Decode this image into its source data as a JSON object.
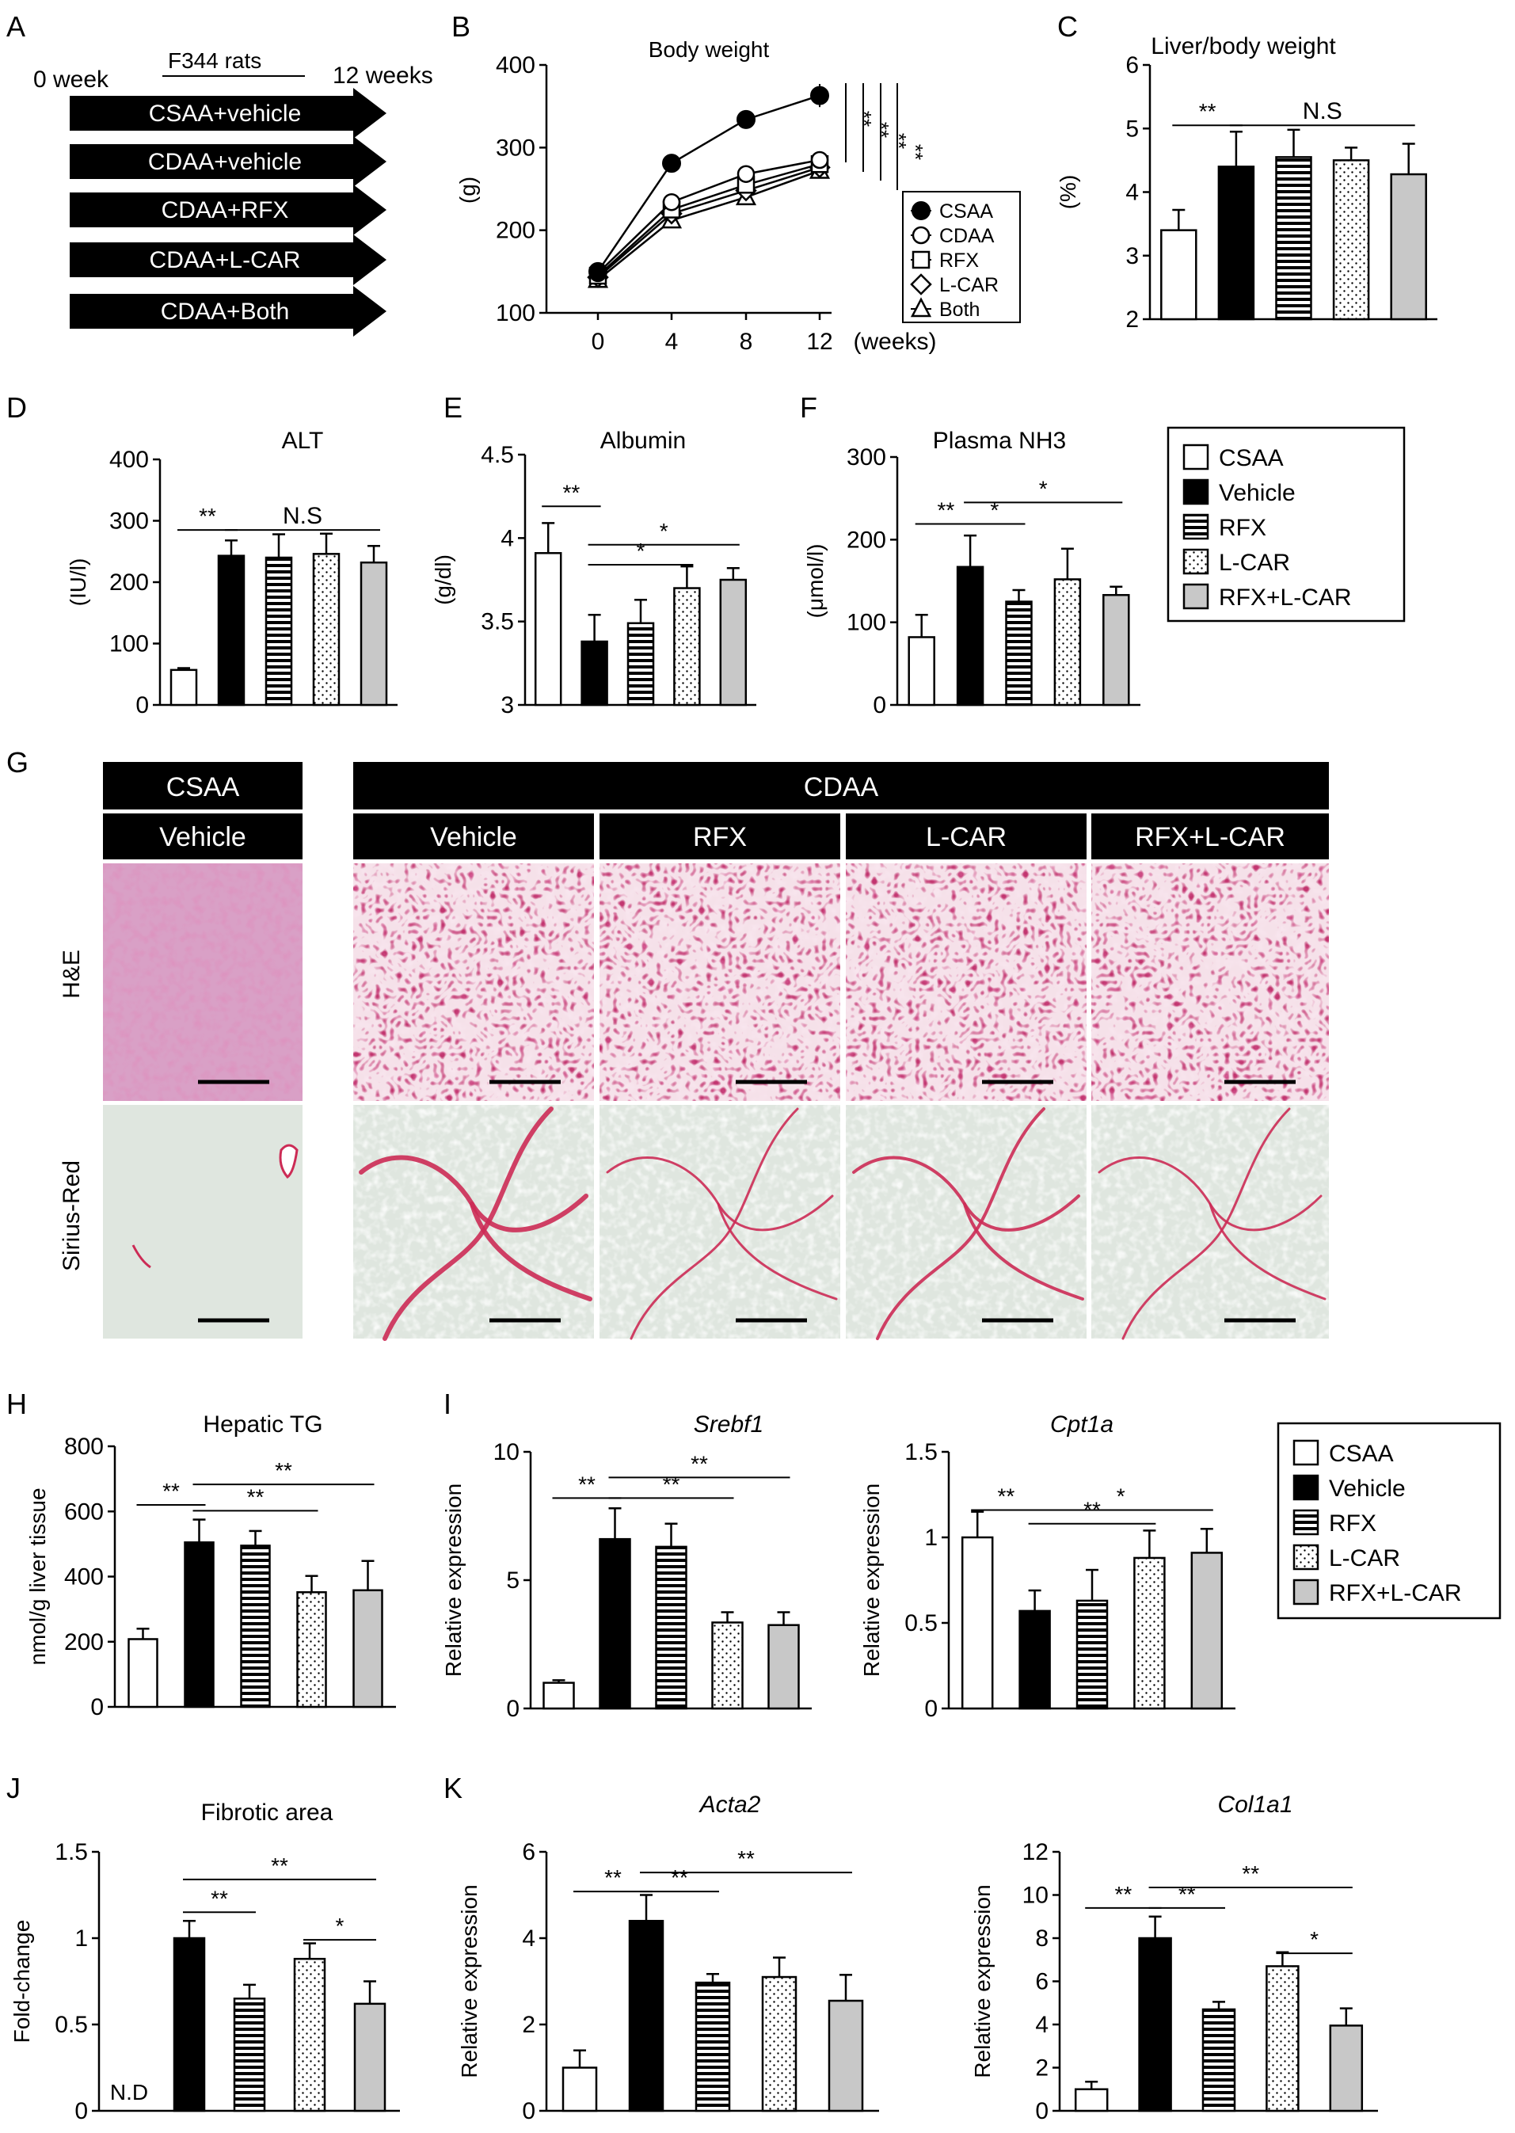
{
  "colors": {
    "csaa": "#ffffff",
    "vehicle": "#000000",
    "rfx": "#ffffff",
    "lcar": "#ffffff",
    "both": "#c8c8c8",
    "he_pink": "#d9a0c6",
    "he_dense": "#c2356f",
    "sirius_bg": "#dfe6df",
    "sirius_red": "#cc2b55",
    "header_bg": "#000000",
    "header_text": "#ffffff"
  },
  "panels": {
    "A": {
      "letter": "A",
      "start_label": "0 week",
      "end_label": "12 weeks",
      "strain_label": "F344 rats",
      "groups": [
        "CSAA+vehicle",
        "CDAA+vehicle",
        "CDAA+RFX",
        "CDAA+L-CAR",
        "CDAA+Both"
      ]
    },
    "B": {
      "letter": "B"
    },
    "C": {
      "letter": "C"
    },
    "D": {
      "letter": "D"
    },
    "E": {
      "letter": "E"
    },
    "F": {
      "letter": "F"
    },
    "G": {
      "letter": "G",
      "group_headers": [
        "CSAA",
        "CDAA"
      ],
      "column_labels": [
        "Vehicle",
        "Vehicle",
        "RFX",
        "L-CAR",
        "RFX+L-CAR"
      ],
      "row_labels": [
        "H&E",
        "Sirius-Red"
      ]
    },
    "H": {
      "letter": "H"
    },
    "I": {
      "letter": "I"
    },
    "J": {
      "letter": "J"
    },
    "K": {
      "letter": "K"
    }
  },
  "legend_top": [
    "CSAA",
    "Vehicle",
    "RFX",
    "L-CAR",
    "RFX+L-CAR"
  ],
  "legend_bottom": [
    "CSAA",
    "Vehicle",
    "RFX",
    "L-CAR",
    "RFX+L-CAR"
  ],
  "chart_data": [
    {
      "id": "B",
      "type": "line",
      "title": "Body weight",
      "xlabel": "(weeks)",
      "ylabel": "(g)",
      "x": [
        0,
        4,
        8,
        12
      ],
      "ylim": [
        100,
        400
      ],
      "yticks": [
        100,
        200,
        300,
        400
      ],
      "xticks": [
        0,
        4,
        8,
        12
      ],
      "series": [
        {
          "name": "CSAA",
          "marker": "filled-circle",
          "values": [
            150,
            281,
            334,
            363
          ],
          "errors": [
            8,
            8,
            6,
            14
          ]
        },
        {
          "name": "CDAA",
          "marker": "open-circle",
          "values": [
            148,
            234,
            268,
            285
          ],
          "errors": [
            8,
            6,
            6,
            6
          ]
        },
        {
          "name": "RFX",
          "marker": "open-square",
          "values": [
            145,
            225,
            255,
            280
          ],
          "errors": [
            8,
            6,
            6,
            6
          ]
        },
        {
          "name": "L-CAR",
          "marker": "open-diamond",
          "values": [
            143,
            220,
            248,
            276
          ],
          "errors": [
            8,
            6,
            6,
            6
          ]
        },
        {
          "name": "Both",
          "marker": "open-triangle",
          "values": [
            140,
            212,
            240,
            272
          ],
          "errors": [
            8,
            6,
            6,
            6
          ]
        }
      ],
      "significance": [
        "**",
        "**",
        "**",
        "**"
      ]
    },
    {
      "id": "C",
      "type": "bar",
      "title": "Liver/body weight",
      "ylabel": "(%)",
      "ylim": [
        2,
        6
      ],
      "yticks": [
        2,
        3,
        4,
        5,
        6
      ],
      "categories": [
        "CSAA",
        "Vehicle",
        "RFX",
        "L-CAR",
        "RFX+L-CAR"
      ],
      "values": [
        3.4,
        4.4,
        4.55,
        4.5,
        4.28
      ],
      "errors": [
        0.32,
        0.55,
        0.43,
        0.2,
        0.48
      ],
      "annotations": [
        {
          "label": "**",
          "from": 0,
          "to": 1,
          "y": 5.05
        },
        {
          "label": "N.S",
          "from": 1,
          "to": 4,
          "y": 5.05
        }
      ]
    },
    {
      "id": "D",
      "type": "bar",
      "title": "ALT",
      "ylabel": "(IU/l)",
      "ylim": [
        0,
        400
      ],
      "yticks": [
        0,
        100,
        200,
        300,
        400
      ],
      "categories": [
        "CSAA",
        "Vehicle",
        "RFX",
        "L-CAR",
        "RFX+L-CAR"
      ],
      "values": [
        57,
        243,
        240,
        246,
        232
      ],
      "errors": [
        3,
        25,
        38,
        33,
        27
      ],
      "annotations": [
        {
          "label": "**",
          "from": 0,
          "to": 1,
          "y": 285
        },
        {
          "label": "N.S",
          "from": 1,
          "to": 4,
          "y": 285
        }
      ]
    },
    {
      "id": "E",
      "type": "bar",
      "title": "Albumin",
      "ylabel": "(g/dl)",
      "ylim": [
        3,
        4.5
      ],
      "yticks": [
        3,
        3.5,
        4,
        4.5
      ],
      "categories": [
        "CSAA",
        "Vehicle",
        "RFX",
        "L-CAR",
        "RFX+L-CAR"
      ],
      "values": [
        3.91,
        3.38,
        3.49,
        3.7,
        3.75
      ],
      "errors": [
        0.18,
        0.16,
        0.14,
        0.13,
        0.07
      ],
      "annotations": [
        {
          "label": "**",
          "from": 0,
          "to": 1,
          "y": 4.19
        },
        {
          "label": "*",
          "from": 1,
          "to": 4,
          "y": 3.96
        },
        {
          "label": "*",
          "from": 1,
          "to": 3,
          "y": 3.84
        }
      ]
    },
    {
      "id": "F",
      "type": "bar",
      "title": "Plasma NH3",
      "ylabel": "(μmol/l)",
      "ylim": [
        0,
        300
      ],
      "yticks": [
        0,
        100,
        200,
        300
      ],
      "categories": [
        "CSAA",
        "Vehicle",
        "RFX",
        "L-CAR",
        "RFX+L-CAR"
      ],
      "values": [
        82,
        167,
        125,
        152,
        133
      ],
      "errors": [
        27,
        38,
        14,
        37,
        10
      ],
      "annotations": [
        {
          "label": "**",
          "from": 0,
          "to": 1,
          "y": 219
        },
        {
          "label": "*",
          "from": 1,
          "to": 2,
          "y": 219
        },
        {
          "label": "*",
          "from": 1,
          "to": 4,
          "y": 245
        }
      ]
    },
    {
      "id": "H",
      "type": "bar",
      "title": "Hepatic TG",
      "ylabel": "nmol/g liver tissue",
      "ylim": [
        0,
        800
      ],
      "yticks": [
        0,
        200,
        400,
        600,
        800
      ],
      "categories": [
        "CSAA",
        "Vehicle",
        "RFX",
        "L-CAR",
        "RFX+L-CAR"
      ],
      "values": [
        208,
        505,
        495,
        352,
        358
      ],
      "errors": [
        32,
        70,
        45,
        50,
        90
      ],
      "annotations": [
        {
          "label": "**",
          "from": 0,
          "to": 1,
          "y": 620
        },
        {
          "label": "**",
          "from": 1,
          "to": 4,
          "y": 683
        },
        {
          "label": "**",
          "from": 1,
          "to": 3,
          "y": 602
        }
      ]
    },
    {
      "id": "I1",
      "type": "bar",
      "title": "Srebf1",
      "title_italic": true,
      "ylabel": "Relative expression",
      "ylim": [
        0,
        10
      ],
      "yticks": [
        0,
        5,
        10
      ],
      "categories": [
        "CSAA",
        "Vehicle",
        "RFX",
        "L-CAR",
        "RFX+L-CAR"
      ],
      "values": [
        1.0,
        6.6,
        6.3,
        3.35,
        3.25
      ],
      "errors": [
        0.1,
        1.2,
        0.9,
        0.4,
        0.5
      ],
      "annotations": [
        {
          "label": "**",
          "from": 0,
          "to": 1,
          "y": 8.2
        },
        {
          "label": "**",
          "from": 1,
          "to": 4,
          "y": 9.0
        },
        {
          "label": "**",
          "from": 1,
          "to": 3,
          "y": 8.2
        }
      ]
    },
    {
      "id": "I2",
      "type": "bar",
      "title": "Cpt1a",
      "title_italic": true,
      "ylabel": "Relative expression",
      "ylim": [
        0,
        1.5
      ],
      "yticks": [
        0,
        0.5,
        1,
        1.5
      ],
      "categories": [
        "CSAA",
        "Vehicle",
        "RFX",
        "L-CAR",
        "RFX+L-CAR"
      ],
      "values": [
        1.0,
        0.57,
        0.63,
        0.88,
        0.91
      ],
      "errors": [
        0.15,
        0.12,
        0.18,
        0.16,
        0.14
      ],
      "annotations": [
        {
          "label": "**",
          "from": 0,
          "to": 1,
          "y": 1.16
        },
        {
          "label": "*",
          "from": 1,
          "to": 4,
          "y": 1.16
        },
        {
          "label": "**",
          "from": 1,
          "to": 3,
          "y": 1.08
        }
      ]
    },
    {
      "id": "J",
      "type": "bar",
      "title": "Fibrotic area",
      "ylabel": "Fold-change",
      "ylim": [
        0,
        1.5
      ],
      "yticks": [
        0,
        0.5,
        1,
        1.5
      ],
      "categories": [
        "CSAA",
        "Vehicle",
        "RFX",
        "L-CAR",
        "RFX+L-CAR"
      ],
      "values": [
        0,
        1.0,
        0.65,
        0.88,
        0.62
      ],
      "errors": [
        0,
        0.1,
        0.08,
        0.09,
        0.13
      ],
      "na_label": "N.D",
      "annotations": [
        {
          "label": "**",
          "from": 1,
          "to": 4,
          "y": 1.34
        },
        {
          "label": "**",
          "from": 1,
          "to": 2,
          "y": 1.15
        },
        {
          "label": "*",
          "from": 3,
          "to": 4,
          "y": 0.99
        }
      ]
    },
    {
      "id": "K1",
      "type": "bar",
      "title": "Acta2",
      "title_italic": true,
      "ylabel": "Relative expression",
      "ylim": [
        0,
        6
      ],
      "yticks": [
        0,
        2,
        4,
        6
      ],
      "categories": [
        "CSAA",
        "Vehicle",
        "RFX",
        "L-CAR",
        "RFX+L-CAR"
      ],
      "values": [
        1.0,
        4.4,
        2.97,
        3.1,
        2.55
      ],
      "errors": [
        0.4,
        0.6,
        0.2,
        0.45,
        0.6
      ],
      "annotations": [
        {
          "label": "**",
          "from": 0,
          "to": 1,
          "y": 5.08
        },
        {
          "label": "**",
          "from": 1,
          "to": 4,
          "y": 5.52
        },
        {
          "label": "**",
          "from": 1,
          "to": 2,
          "y": 5.08
        }
      ]
    },
    {
      "id": "K2",
      "type": "bar",
      "title": "Col1a1",
      "title_italic": true,
      "ylabel": "Relative expression",
      "ylim": [
        0,
        12
      ],
      "yticks": [
        0,
        2,
        4,
        6,
        8,
        10,
        12
      ],
      "categories": [
        "CSAA",
        "Vehicle",
        "RFX",
        "L-CAR",
        "RFX+L-CAR"
      ],
      "values": [
        1.0,
        8.0,
        4.7,
        6.7,
        3.95
      ],
      "errors": [
        0.35,
        1.0,
        0.35,
        0.65,
        0.8
      ],
      "annotations": [
        {
          "label": "**",
          "from": 0,
          "to": 1,
          "y": 9.4
        },
        {
          "label": "**",
          "from": 1,
          "to": 4,
          "y": 10.35
        },
        {
          "label": "**",
          "from": 1,
          "to": 2,
          "y": 9.4
        },
        {
          "label": "*",
          "from": 3,
          "to": 4,
          "y": 7.3
        }
      ]
    }
  ]
}
